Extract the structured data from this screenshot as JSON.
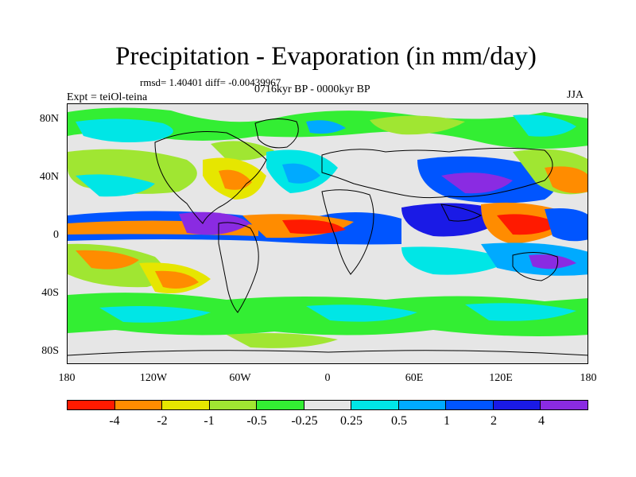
{
  "title": "Precipitation - Evaporation (in mm/day)",
  "stats": "rmsd= 1.40401 diff= -0.00439967",
  "subtitle": "0716kyr BP - 0000kyr BP",
  "expt": "Expt = teiOl-teina",
  "season": "JJA",
  "y_axis": [
    "80N",
    "40N",
    "0",
    "40S",
    "80S"
  ],
  "x_axis": [
    "180",
    "120W",
    "60W",
    "0",
    "60E",
    "120E",
    "180"
  ],
  "colorbar": {
    "labels": [
      "-4",
      "-2",
      "-1",
      "-0.5",
      "-0.25",
      "0.25",
      "0.5",
      "1",
      "2",
      "4"
    ],
    "colors": [
      "#ff1a00",
      "#ff8c00",
      "#e6e600",
      "#a0e632",
      "#33ee33",
      "#e6e6e6",
      "#00e6e6",
      "#00aaff",
      "#0055ff",
      "#1a1ae6",
      "#8a2be2"
    ]
  }
}
